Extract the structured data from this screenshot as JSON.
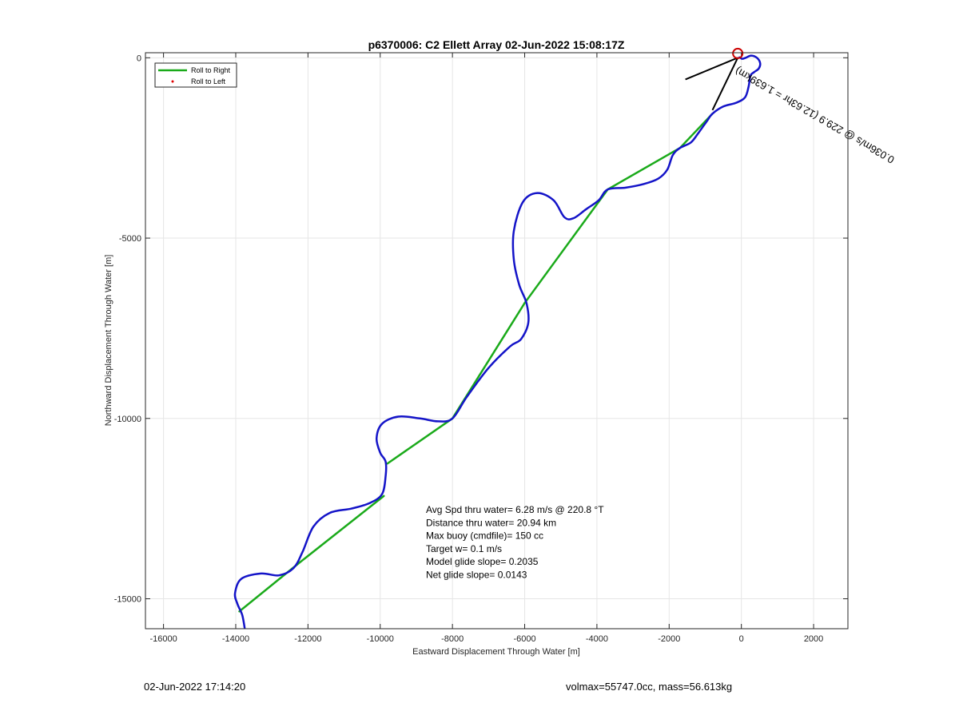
{
  "chart_data": {
    "type": "line",
    "title": "p6370006: C2 Ellett Array 02-Jun-2022 15:08:17Z",
    "xlabel": "Eastward Displacement Through Water [m]",
    "ylabel": "Northward Displacement Through Water [m]",
    "xlim": [
      -16500,
      2950
    ],
    "ylim": [
      -15830,
      140
    ],
    "xticks": [
      -16000,
      -14000,
      -12000,
      -10000,
      -8000,
      -6000,
      -4000,
      -2000,
      0,
      2000
    ],
    "yticks": [
      0,
      -5000,
      -10000,
      -15000
    ],
    "grid": true,
    "legend": {
      "position": "top-left",
      "entries": [
        {
          "label": "Roll to Right",
          "color": "#1aaa1a",
          "marker": "line"
        },
        {
          "label": "Roll to Left",
          "color": "#e00000",
          "marker": "dot"
        }
      ]
    },
    "series": [
      {
        "name": "Roll to Right",
        "color": "#1aaa1a",
        "segments": [
          [
            [
              -13900,
              -15350
            ],
            [
              -12300,
              -14050
            ]
          ],
          [
            [
              -12300,
              -14050
            ],
            [
              -9900,
              -12150
            ]
          ],
          [
            [
              -9800,
              -11250
            ],
            [
              -8000,
              -10000
            ]
          ],
          [
            [
              -8000,
              -10000
            ],
            [
              -6000,
              -6800
            ]
          ],
          [
            [
              -6000,
              -6800
            ],
            [
              -3700,
              -3650
            ]
          ],
          [
            [
              -3700,
              -3650
            ],
            [
              -1700,
              -2500
            ]
          ],
          [
            [
              -1700,
              -2500
            ],
            [
              -800,
              -1550
            ]
          ]
        ]
      },
      {
        "name": "track",
        "color": "#1414c8",
        "points": [
          [
            -13750,
            -15830
          ],
          [
            -13820,
            -15450
          ],
          [
            -13950,
            -15150
          ],
          [
            -14020,
            -14850
          ],
          [
            -13850,
            -14450
          ],
          [
            -13300,
            -14300
          ],
          [
            -12800,
            -14350
          ],
          [
            -12400,
            -14150
          ],
          [
            -12150,
            -13700
          ],
          [
            -11850,
            -13000
          ],
          [
            -11400,
            -12620
          ],
          [
            -10800,
            -12500
          ],
          [
            -10300,
            -12350
          ],
          [
            -9950,
            -12100
          ],
          [
            -9850,
            -11600
          ],
          [
            -9850,
            -11200
          ],
          [
            -10000,
            -10950
          ],
          [
            -10100,
            -10550
          ],
          [
            -9950,
            -10150
          ],
          [
            -9500,
            -9950
          ],
          [
            -8900,
            -10000
          ],
          [
            -8400,
            -10080
          ],
          [
            -8000,
            -10000
          ],
          [
            -7600,
            -9400
          ],
          [
            -7000,
            -8600
          ],
          [
            -6400,
            -8000
          ],
          [
            -6100,
            -7800
          ],
          [
            -5900,
            -7350
          ],
          [
            -5950,
            -6800
          ],
          [
            -6150,
            -6300
          ],
          [
            -6300,
            -5600
          ],
          [
            -6300,
            -4800
          ],
          [
            -6050,
            -4000
          ],
          [
            -5650,
            -3750
          ],
          [
            -5200,
            -3950
          ],
          [
            -4900,
            -4420
          ],
          [
            -4650,
            -4450
          ],
          [
            -4300,
            -4200
          ],
          [
            -3950,
            -3950
          ],
          [
            -3700,
            -3650
          ],
          [
            -3200,
            -3600
          ],
          [
            -2700,
            -3500
          ],
          [
            -2300,
            -3350
          ],
          [
            -2050,
            -3100
          ],
          [
            -1900,
            -2700
          ],
          [
            -1700,
            -2500
          ],
          [
            -1400,
            -2350
          ],
          [
            -1200,
            -2100
          ],
          [
            -950,
            -1750
          ],
          [
            -800,
            -1550
          ],
          [
            -500,
            -1350
          ],
          [
            -150,
            -1250
          ],
          [
            100,
            -1100
          ],
          [
            200,
            -800
          ],
          [
            250,
            -500
          ],
          [
            350,
            -400
          ],
          [
            480,
            -300
          ],
          [
            520,
            -150
          ],
          [
            430,
            0
          ],
          [
            270,
            60
          ],
          [
            120,
            0
          ],
          [
            20,
            -30
          ],
          [
            -40,
            10
          ],
          [
            -80,
            0
          ]
        ]
      }
    ],
    "start_marker": {
      "x": -100,
      "y": 120,
      "color": "#cc0000"
    },
    "current_vector": {
      "label": "0.036m/s @ 229.9 (12.63hr = 1.639km)",
      "lines": [
        [
          [
            -100,
            0
          ],
          [
            -1550,
            -600
          ]
        ],
        [
          [
            -100,
            0
          ],
          [
            -800,
            -1450
          ]
        ]
      ]
    },
    "annotations": [
      "Avg Spd thru water=  6.28 m/s @ 220.8 °T",
      "Distance thru water= 20.94 km",
      "Max buoy (cmdfile)= 150 cc",
      "Target w= 0.1 m/s",
      "Model glide slope= 0.2035",
      "Net glide slope= 0.0143"
    ]
  },
  "footer": {
    "left": "02-Jun-2022 17:14:20",
    "right": "volmax=55747.0cc, mass=56.613kg"
  }
}
